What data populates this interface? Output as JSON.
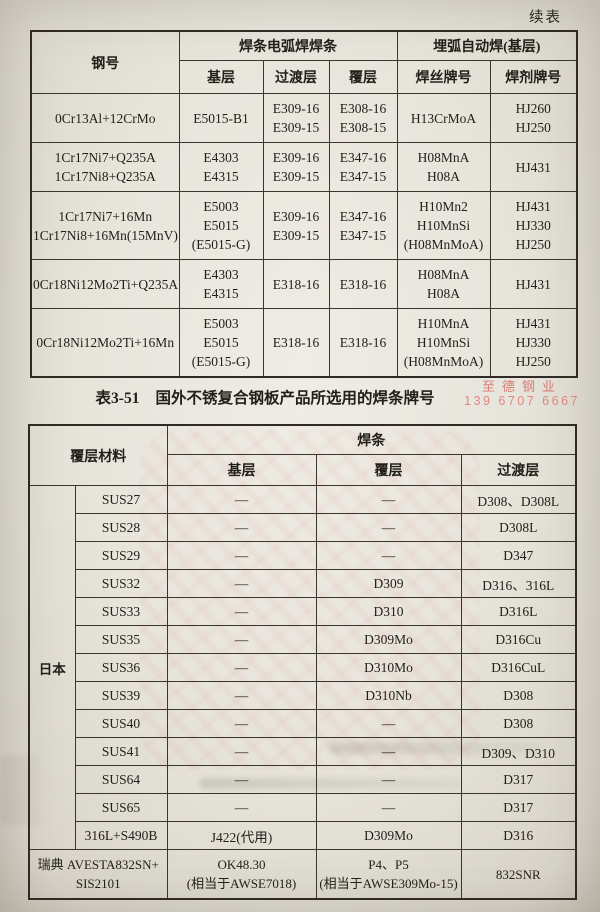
{
  "page": {
    "continued_label": "续表",
    "watermark": {
      "name": "至德钢业",
      "phone": "139 6707 6667",
      "color": "#d5584f"
    }
  },
  "table1": {
    "header": {
      "steel_col": "钢号",
      "group1": "焊条电弧焊焊条",
      "group1_cols": [
        "基层",
        "过渡层",
        "覆层"
      ],
      "group2": "埋弧自动焊(基层)",
      "group2_cols": [
        "焊丝牌号",
        "焊剂牌号"
      ]
    },
    "rows": [
      {
        "steel": [
          "0Cr13Al+12CrMo"
        ],
        "base": [
          "E5015-B1"
        ],
        "transition": [
          "E309-16",
          "E309-15"
        ],
        "clad": [
          "E308-16",
          "E308-15"
        ],
        "wire": [
          "H13CrMoA"
        ],
        "flux": [
          "HJ260",
          "HJ250"
        ]
      },
      {
        "steel": [
          "1Cr17Ni7+Q235A",
          "1Cr17Ni8+Q235A"
        ],
        "base": [
          "E4303",
          "E4315"
        ],
        "transition": [
          "E309-16",
          "E309-15"
        ],
        "clad": [
          "E347-16",
          "E347-15"
        ],
        "wire": [
          "H08MnA",
          "H08A"
        ],
        "flux": [
          "HJ431"
        ]
      },
      {
        "steel": [
          "1Cr17Ni7+16Mn",
          "1Cr17Ni8+16Mn(15MnV)"
        ],
        "base": [
          "E5003",
          "E5015",
          "(E5015-G)"
        ],
        "transition": [
          "E309-16",
          "E309-15"
        ],
        "clad": [
          "E347-16",
          "E347-15"
        ],
        "wire": [
          "H10Mn2",
          "H10MnSi",
          "(H08MnMoA)"
        ],
        "flux": [
          "HJ431",
          "HJ330",
          "HJ250"
        ]
      },
      {
        "steel": [
          "0Cr18Ni12Mo2Ti+Q235A"
        ],
        "base": [
          "E4303",
          "E4315"
        ],
        "transition": [
          "E318-16"
        ],
        "clad": [
          "E318-16"
        ],
        "wire": [
          "H08MnA",
          "H08A"
        ],
        "flux": [
          "HJ431"
        ]
      },
      {
        "steel": [
          "0Cr18Ni12Mo2Ti+16Mn"
        ],
        "base": [
          "E5003",
          "E5015",
          "(E5015-G)"
        ],
        "transition": [
          "E318-16"
        ],
        "clad": [
          "E318-16"
        ],
        "wire": [
          "H10MnA",
          "H10MnSi",
          "(H08MnMoA)"
        ],
        "flux": [
          "HJ431",
          "HJ330",
          "HJ250"
        ]
      }
    ]
  },
  "caption": {
    "label": "表3-51",
    "title": "国外不锈复合钢板产品所选用的焊条牌号"
  },
  "table2": {
    "header": {
      "material_col": "覆层材料",
      "group": "焊条",
      "cols": [
        "基层",
        "覆层",
        "过渡层"
      ]
    },
    "country_label": "日本",
    "rows": [
      {
        "material": "SUS27",
        "base": "—",
        "clad": "—",
        "transition": "D308、D308L"
      },
      {
        "material": "SUS28",
        "base": "—",
        "clad": "—",
        "transition": "D308L"
      },
      {
        "material": "SUS29",
        "base": "—",
        "clad": "—",
        "transition": "D347"
      },
      {
        "material": "SUS32",
        "base": "—",
        "clad": "D309",
        "transition": "D316、316L"
      },
      {
        "material": "SUS33",
        "base": "—",
        "clad": "D310",
        "transition": "D316L"
      },
      {
        "material": "SUS35",
        "base": "—",
        "clad": "D309Mo",
        "transition": "D316Cu"
      },
      {
        "material": "SUS36",
        "base": "—",
        "clad": "D310Mo",
        "transition": "D316CuL"
      },
      {
        "material": "SUS39",
        "base": "—",
        "clad": "D310Nb",
        "transition": "D308"
      },
      {
        "material": "SUS40",
        "base": "—",
        "clad": "—",
        "transition": "D308"
      },
      {
        "material": "SUS41",
        "base": "—",
        "clad": "—",
        "transition": "D309、D310"
      },
      {
        "material": "SUS64",
        "base": "—",
        "clad": "—",
        "transition": "D317"
      },
      {
        "material": "SUS65",
        "base": "—",
        "clad": "—",
        "transition": "D317"
      },
      {
        "material": "316L+S490B",
        "base": "J422(代用)",
        "clad": "D309Mo",
        "transition": "D316"
      }
    ],
    "last_row": {
      "material": [
        "瑞典 AVESTA832SN+",
        "SIS2101"
      ],
      "base": [
        "OK48.30",
        "(相当于AWSE7018)"
      ],
      "clad": [
        "P4、P5",
        "(相当于AWSE309Mo-15)"
      ],
      "transition": [
        "832SNR"
      ]
    }
  }
}
